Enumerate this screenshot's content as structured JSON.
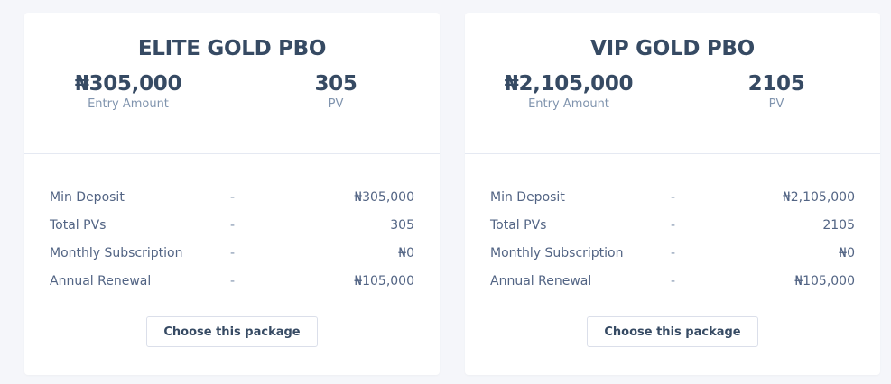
{
  "packages": [
    {
      "title": "ELITE GOLD PBO",
      "entry_amount": "₦305,000",
      "entry_label": "Entry Amount",
      "pv": "305",
      "pv_label": "PV",
      "rows": [
        {
          "label": "Min Deposit",
          "dash": "-",
          "value": "₦305,000"
        },
        {
          "label": "Total PVs",
          "dash": "-",
          "value": "305"
        },
        {
          "label": "Monthly Subscription",
          "dash": "-",
          "value": "₦0"
        },
        {
          "label": "Annual Renewal",
          "dash": "-",
          "value": "₦105,000"
        }
      ],
      "button": "Choose this package"
    },
    {
      "title": "VIP GOLD PBO",
      "entry_amount": "₦2,105,000",
      "entry_label": "Entry Amount",
      "pv": "2105",
      "pv_label": "PV",
      "rows": [
        {
          "label": "Min Deposit",
          "dash": "-",
          "value": "₦2,105,000"
        },
        {
          "label": "Total PVs",
          "dash": "-",
          "value": "2105"
        },
        {
          "label": "Monthly Subscription",
          "dash": "-",
          "value": "₦0"
        },
        {
          "label": "Annual Renewal",
          "dash": "-",
          "value": "₦105,000"
        }
      ],
      "button": "Choose this package"
    }
  ]
}
